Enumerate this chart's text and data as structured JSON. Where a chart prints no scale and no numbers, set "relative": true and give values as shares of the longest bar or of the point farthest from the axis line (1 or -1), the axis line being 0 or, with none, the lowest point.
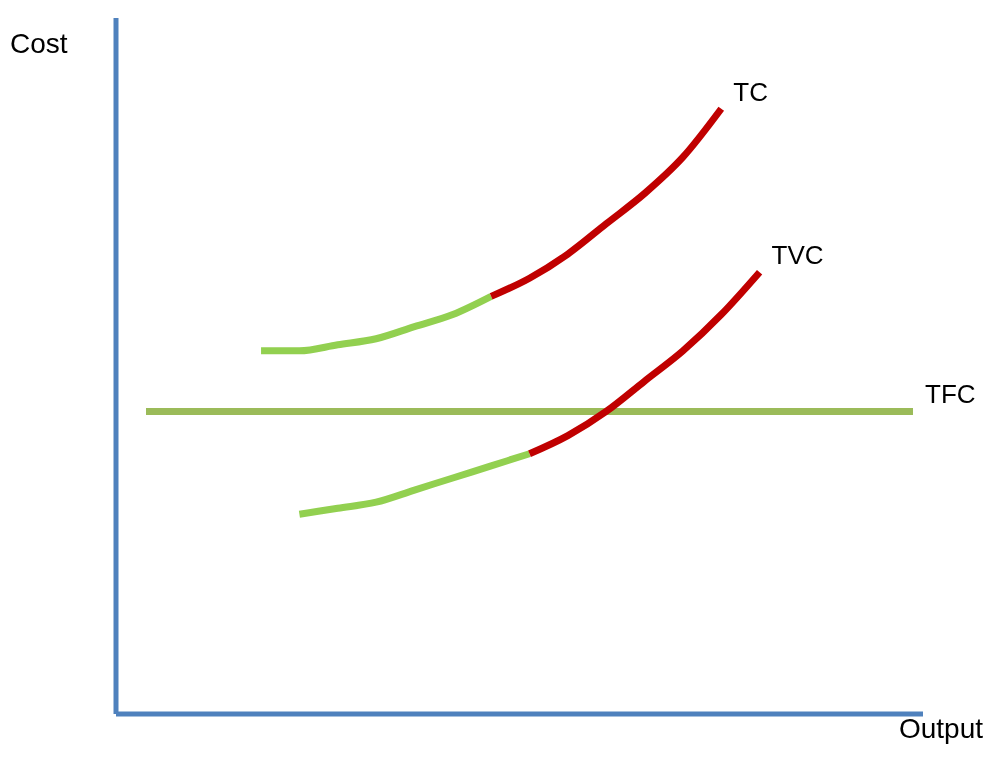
{
  "chart_data": {
    "type": "line",
    "xlabel": "Output",
    "ylabel": "Cost",
    "relative": true,
    "marker": "none",
    "line_style": "solid",
    "legend": false,
    "grid": false,
    "categories": [
      null,
      null,
      null,
      null,
      null,
      null,
      null,
      null,
      null,
      null,
      null,
      null,
      null,
      null,
      null,
      null,
      null,
      null,
      null,
      null,
      null
    ],
    "series": [
      {
        "name": "TFC",
        "color": "#9bbb59",
        "values": [
          0.5,
          0.5,
          0.5,
          0.5,
          0.5,
          0.5,
          0.5,
          0.5,
          0.5,
          0.5,
          0.5,
          0.5,
          0.5,
          0.5,
          0.5,
          0.5,
          0.5,
          0.5,
          0.5,
          0.5,
          0.5
        ]
      },
      {
        "color": "#92d050",
        "values": [
          null,
          null,
          null,
          0.6,
          0.6,
          0.61,
          0.62,
          0.64,
          0.66,
          0.69,
          null,
          null,
          null,
          null,
          null,
          null,
          null,
          null,
          null,
          null,
          null
        ]
      },
      {
        "name": "TC",
        "color": "#c00000",
        "values": [
          null,
          null,
          null,
          null,
          null,
          null,
          null,
          null,
          null,
          0.69,
          0.72,
          0.76,
          0.81,
          0.86,
          0.92,
          1,
          null,
          null,
          null,
          null,
          null
        ]
      },
      {
        "color": "#92d050",
        "values": [
          null,
          null,
          null,
          null,
          0.33,
          0.34,
          0.35,
          0.37,
          0.39,
          0.41,
          0.43,
          null,
          null,
          null,
          null,
          null,
          null,
          null,
          null,
          null,
          null
        ]
      },
      {
        "name": "TVC",
        "color": "#c00000",
        "values": [
          null,
          null,
          null,
          null,
          null,
          null,
          null,
          null,
          null,
          null,
          0.43,
          0.46,
          0.5,
          0.55,
          0.6,
          0.66,
          0.73,
          null,
          null,
          null,
          null
        ]
      }
    ]
  }
}
